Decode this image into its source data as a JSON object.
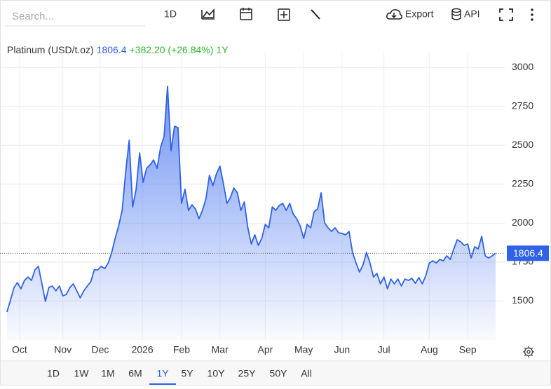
{
  "toolbar": {
    "search_placeholder": "Search...",
    "interval": "1D",
    "export": "Export",
    "api": "API"
  },
  "chart_data": {
    "type": "area",
    "title": "Platinum (USD/t.oz)",
    "change": "+382.20 (+26.84%)",
    "period": "1Y",
    "color": "#2f62e8",
    "values": [
      1430,
      1506,
      1587,
      1618,
      1578,
      1632,
      1654,
      1632,
      1700,
      1722,
      1610,
      1497,
      1587,
      1596,
      1565,
      1596,
      1533,
      1542,
      1587,
      1610,
      1565,
      1520,
      1565,
      1596,
      1623,
      1700,
      1700,
      1722,
      1708,
      1744,
      1812,
      1902,
      1983,
      2082,
      2330,
      2532,
      2104,
      2217,
      2451,
      2262,
      2352,
      2374,
      2406,
      2352,
      2487,
      2555,
      2878,
      2464,
      2622,
      2613,
      2127,
      2217,
      2082,
      2118,
      2091,
      2028,
      2082,
      2158,
      2307,
      2240,
      2316,
      2366,
      2253,
      2127,
      2163,
      2226,
      2195,
      2082,
      2136,
      1970,
      1866,
      1925,
      1857,
      1902,
      1992,
      1970,
      2104,
      2082,
      2113,
      2127,
      2082,
      2127,
      2059,
      2028,
      1983,
      1902,
      1992,
      1970,
      2073,
      2091,
      2195,
      2001,
      1970,
      1947,
      1970,
      1938,
      1934,
      1925,
      1947,
      1812,
      1744,
      1686,
      1731,
      1812,
      1744,
      1654,
      1677,
      1610,
      1654,
      1578,
      1641,
      1610,
      1641,
      1596,
      1641,
      1632,
      1645,
      1614,
      1650,
      1610,
      1663,
      1744,
      1758,
      1744,
      1767,
      1758,
      1790,
      1767,
      1834,
      1893,
      1880,
      1857,
      1866,
      1776,
      1848,
      1834,
      1915,
      1790,
      1776,
      1790,
      1806.4
    ],
    "ylim": [
      1250,
      3050
    ],
    "yticks": [
      1500,
      1750,
      2000,
      2250,
      2500,
      2750,
      3000
    ],
    "xticks": [
      {
        "value": 3.6,
        "label": "Oct"
      },
      {
        "value": 16,
        "label": "Nov"
      },
      {
        "value": 26.7,
        "label": "Dec"
      },
      {
        "value": 38.8,
        "label": "2026"
      },
      {
        "value": 50,
        "label": "Feb"
      },
      {
        "value": 61,
        "label": "Mar"
      },
      {
        "value": 74,
        "label": "Apr"
      },
      {
        "value": 85,
        "label": "May"
      },
      {
        "value": 96,
        "label": "Jun"
      },
      {
        "value": 108,
        "label": "Jul"
      },
      {
        "value": 121,
        "label": "Aug"
      },
      {
        "value": 132,
        "label": "Sep"
      }
    ],
    "grid": true
  },
  "range_buttons": [
    "1D",
    "1W",
    "1M",
    "6M",
    "1Y",
    "5Y",
    "10Y",
    "25Y",
    "50Y",
    "All"
  ],
  "selected_range": "1Y"
}
